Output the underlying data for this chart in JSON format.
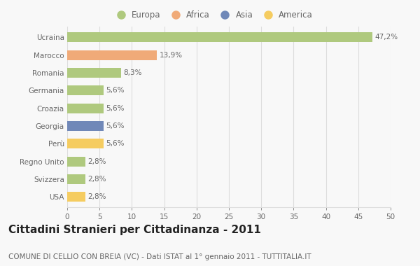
{
  "categories": [
    "Ucraina",
    "Marocco",
    "Romania",
    "Germania",
    "Croazia",
    "Georgia",
    "Perù",
    "Regno Unito",
    "Svizzera",
    "USA"
  ],
  "values": [
    47.2,
    13.9,
    8.3,
    5.6,
    5.6,
    5.6,
    5.6,
    2.8,
    2.8,
    2.8
  ],
  "labels": [
    "47,2%",
    "13,9%",
    "8,3%",
    "5,6%",
    "5,6%",
    "5,6%",
    "5,6%",
    "2,8%",
    "2,8%",
    "2,8%"
  ],
  "colors": [
    "#afc97e",
    "#f0aa78",
    "#afc97e",
    "#afc97e",
    "#afc97e",
    "#7088b8",
    "#f5cc60",
    "#afc97e",
    "#afc97e",
    "#f5cc60"
  ],
  "legend_labels": [
    "Europa",
    "Africa",
    "Asia",
    "America"
  ],
  "legend_colors": [
    "#afc97e",
    "#f0aa78",
    "#7088b8",
    "#f5cc60"
  ],
  "title": "Cittadini Stranieri per Cittadinanza - 2011",
  "subtitle": "COMUNE DI CELLIO CON BREIA (VC) - Dati ISTAT al 1° gennaio 2011 - TUTTITALIA.IT",
  "xlim": [
    0,
    50
  ],
  "xticks": [
    0,
    5,
    10,
    15,
    20,
    25,
    30,
    35,
    40,
    45,
    50
  ],
  "background_color": "#f8f8f8",
  "grid_color": "#dddddd",
  "bar_height": 0.55,
  "title_fontsize": 11,
  "subtitle_fontsize": 7.5,
  "label_fontsize": 7.5,
  "tick_fontsize": 7.5,
  "legend_fontsize": 8.5
}
